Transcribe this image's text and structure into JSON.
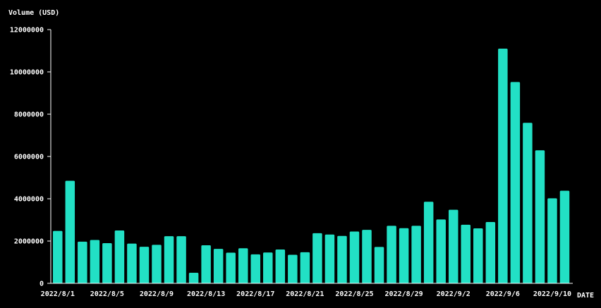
{
  "chart_data": {
    "type": "bar",
    "ylabel": "Volume (USD)",
    "xlabel": "DATE",
    "bar_color": "#22e0c5",
    "background_color": "#000000",
    "ylim": [
      0,
      12000000
    ],
    "yticks": [
      0,
      2000000,
      4000000,
      6000000,
      8000000,
      10000000,
      12000000
    ],
    "ytick_labels": [
      "0",
      "2000000",
      "4000000",
      "6000000",
      "8000000",
      "10000000",
      "12000000"
    ],
    "grid": false,
    "categories": [
      "2022/8/1",
      "2022/8/2",
      "2022/8/3",
      "2022/8/4",
      "2022/8/5",
      "2022/8/6",
      "2022/8/7",
      "2022/8/8",
      "2022/8/9",
      "2022/8/10",
      "2022/8/11",
      "2022/8/12",
      "2022/8/13",
      "2022/8/14",
      "2022/8/15",
      "2022/8/16",
      "2022/8/17",
      "2022/8/18",
      "2022/8/19",
      "2022/8/20",
      "2022/8/21",
      "2022/8/22",
      "2022/8/23",
      "2022/8/24",
      "2022/8/25",
      "2022/8/26",
      "2022/8/27",
      "2022/8/28",
      "2022/8/29",
      "2022/8/30",
      "2022/8/31",
      "2022/9/1",
      "2022/9/2",
      "2022/9/3",
      "2022/9/4",
      "2022/9/5",
      "2022/9/6",
      "2022/9/7",
      "2022/9/8",
      "2022/9/9",
      "2022/9/10",
      "2022/9/11"
    ],
    "values": [
      2480000,
      4850000,
      1970000,
      2050000,
      1900000,
      2500000,
      1880000,
      1730000,
      1820000,
      2230000,
      2230000,
      500000,
      1800000,
      1630000,
      1450000,
      1660000,
      1370000,
      1460000,
      1600000,
      1350000,
      1470000,
      2370000,
      2310000,
      2240000,
      2450000,
      2530000,
      1720000,
      2720000,
      2610000,
      2720000,
      3860000,
      3020000,
      3480000,
      2770000,
      2600000,
      2900000,
      11100000,
      9520000,
      7590000,
      6290000,
      4020000,
      4380000
    ],
    "xtick_labels": [
      {
        "index": 0,
        "label": "2022/8/1"
      },
      {
        "index": 4,
        "label": "2022/8/5"
      },
      {
        "index": 8,
        "label": "2022/8/9"
      },
      {
        "index": 12,
        "label": "2022/8/13"
      },
      {
        "index": 16,
        "label": "2022/8/17"
      },
      {
        "index": 20,
        "label": "2022/8/21"
      },
      {
        "index": 24,
        "label": "2022/8/25"
      },
      {
        "index": 28,
        "label": "2022/8/29"
      },
      {
        "index": 32,
        "label": "2022/9/2"
      },
      {
        "index": 36,
        "label": "2022/9/6"
      },
      {
        "index": 40,
        "label": "2022/9/10"
      }
    ]
  }
}
